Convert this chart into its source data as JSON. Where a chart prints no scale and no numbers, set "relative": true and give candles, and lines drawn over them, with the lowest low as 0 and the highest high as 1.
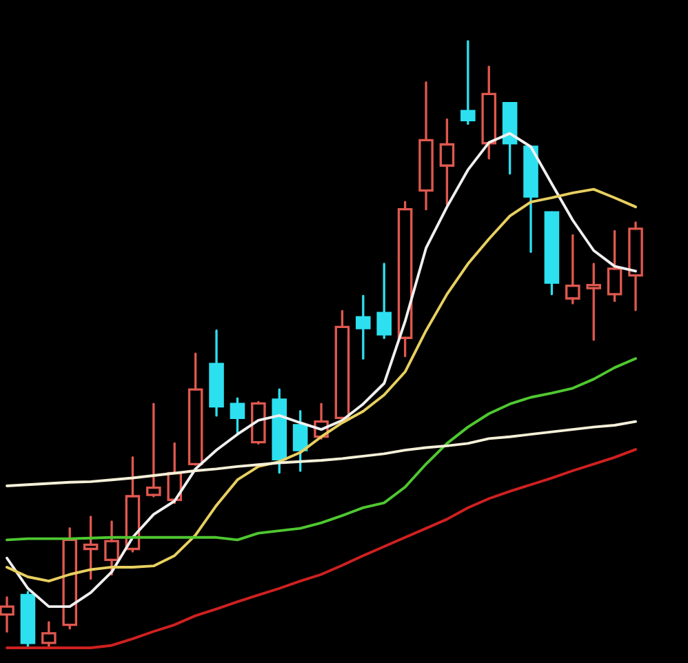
{
  "chart_data": {
    "type": "candlestick",
    "relative": true,
    "categories": [
      null,
      null,
      null,
      null,
      null,
      null,
      null,
      null,
      null,
      null,
      null,
      null,
      null,
      null,
      null,
      null,
      null,
      null,
      null,
      null,
      null,
      null,
      null,
      null,
      null,
      null,
      null,
      null,
      null,
      null,
      null
    ],
    "ohlc": [
      [
        0.055,
        0.083,
        0.027,
        0.068
      ],
      [
        0.087,
        0.092,
        0.0,
        0.008
      ],
      [
        0.008,
        0.042,
        0.002,
        0.024
      ],
      [
        0.038,
        0.197,
        0.032,
        0.178
      ],
      [
        0.163,
        0.216,
        0.114,
        0.17
      ],
      [
        0.145,
        0.208,
        0.121,
        0.176
      ],
      [
        0.163,
        0.314,
        0.159,
        0.25
      ],
      [
        0.252,
        0.402,
        0.25,
        0.264
      ],
      [
        0.244,
        0.337,
        0.239,
        0.288
      ],
      [
        0.303,
        0.485,
        0.302,
        0.426
      ],
      [
        0.468,
        0.523,
        0.383,
        0.398
      ],
      [
        0.402,
        0.411,
        0.352,
        0.379
      ],
      [
        0.339,
        0.405,
        0.337,
        0.403
      ],
      [
        0.409,
        0.426,
        0.289,
        0.311
      ],
      [
        0.367,
        0.39,
        0.292,
        0.326
      ],
      [
        0.348,
        0.402,
        0.345,
        0.373
      ],
      [
        0.379,
        0.555,
        0.375,
        0.529
      ],
      [
        0.545,
        0.58,
        0.477,
        0.527
      ],
      [
        0.552,
        0.633,
        0.511,
        0.517
      ],
      [
        0.511,
        0.735,
        0.481,
        0.723
      ],
      [
        0.754,
        0.932,
        0.723,
        0.837
      ],
      [
        0.795,
        0.871,
        0.731,
        0.83
      ],
      [
        0.885,
        1.0,
        0.864,
        0.87
      ],
      [
        0.832,
        0.958,
        0.807,
        0.913
      ],
      [
        0.898,
        0.898,
        0.782,
        0.832
      ],
      [
        0.826,
        0.826,
        0.653,
        0.744
      ],
      [
        0.718,
        0.718,
        0.583,
        0.602
      ],
      [
        0.576,
        0.68,
        0.568,
        0.597
      ],
      [
        0.593,
        0.633,
        0.508,
        0.598
      ],
      [
        0.583,
        0.687,
        0.572,
        0.625
      ],
      [
        0.614,
        0.701,
        0.557,
        0.691
      ]
    ],
    "colors": [
      "#e0584f",
      "#2de0f0",
      "#e0584f",
      "#e0584f",
      "#e0584f",
      "#e0584f",
      "#e0584f",
      "#e0584f",
      "#e0584f",
      "#e0584f",
      "#2de0f0",
      "#2de0f0",
      "#e0584f",
      "#2de0f0",
      "#2de0f0",
      "#e0584f",
      "#e0584f",
      "#2de0f0",
      "#2de0f0",
      "#e0584f",
      "#e0584f",
      "#e0584f",
      "#2de0f0",
      "#e0584f",
      "#2de0f0",
      "#2de0f0",
      "#2de0f0",
      "#e0584f",
      "#e0584f",
      "#e0584f",
      "#e0584f"
    ],
    "series": [
      {
        "type": "line",
        "color": "#f0f0f0",
        "values": [
          0.148,
          0.098,
          0.068,
          0.068,
          0.091,
          0.125,
          0.182,
          0.22,
          0.242,
          0.295,
          0.326,
          0.352,
          0.375,
          0.383,
          0.371,
          0.36,
          0.375,
          0.402,
          0.436,
          0.538,
          0.659,
          0.727,
          0.788,
          0.833,
          0.848,
          0.826,
          0.765,
          0.705,
          0.655,
          0.629,
          0.621
        ]
      },
      {
        "type": "line",
        "color": "#e8d060",
        "values": [
          0.133,
          0.117,
          0.11,
          0.121,
          0.129,
          0.133,
          0.133,
          0.135,
          0.152,
          0.186,
          0.235,
          0.277,
          0.299,
          0.307,
          0.322,
          0.348,
          0.371,
          0.39,
          0.417,
          0.455,
          0.523,
          0.583,
          0.633,
          0.674,
          0.712,
          0.735,
          0.742,
          0.75,
          0.756,
          0.742,
          0.727
        ]
      },
      {
        "type": "line",
        "color": "#4fc830",
        "values": [
          0.178,
          0.18,
          0.18,
          0.18,
          0.181,
          0.182,
          0.182,
          0.182,
          0.182,
          0.182,
          0.182,
          0.178,
          0.189,
          0.193,
          0.197,
          0.206,
          0.218,
          0.231,
          0.239,
          0.265,
          0.303,
          0.337,
          0.364,
          0.386,
          0.402,
          0.413,
          0.42,
          0.428,
          0.443,
          0.462,
          0.477
        ]
      },
      {
        "type": "line",
        "color": "#f5f0d8",
        "values": [
          0.267,
          0.269,
          0.271,
          0.273,
          0.274,
          0.277,
          0.28,
          0.284,
          0.288,
          0.292,
          0.295,
          0.299,
          0.302,
          0.305,
          0.307,
          0.309,
          0.312,
          0.316,
          0.32,
          0.326,
          0.33,
          0.333,
          0.337,
          0.345,
          0.348,
          0.352,
          0.356,
          0.36,
          0.364,
          0.367,
          0.373
        ]
      },
      {
        "type": "line",
        "color": "#d02020",
        "values": [
          0.0,
          0.0,
          0.0,
          0.0,
          0.0,
          0.004,
          0.015,
          0.027,
          0.038,
          0.053,
          0.064,
          0.076,
          0.087,
          0.098,
          0.11,
          0.121,
          0.136,
          0.152,
          0.167,
          0.182,
          0.197,
          0.212,
          0.231,
          0.246,
          0.258,
          0.269,
          0.28,
          0.292,
          0.303,
          0.314,
          0.327
        ]
      }
    ]
  }
}
